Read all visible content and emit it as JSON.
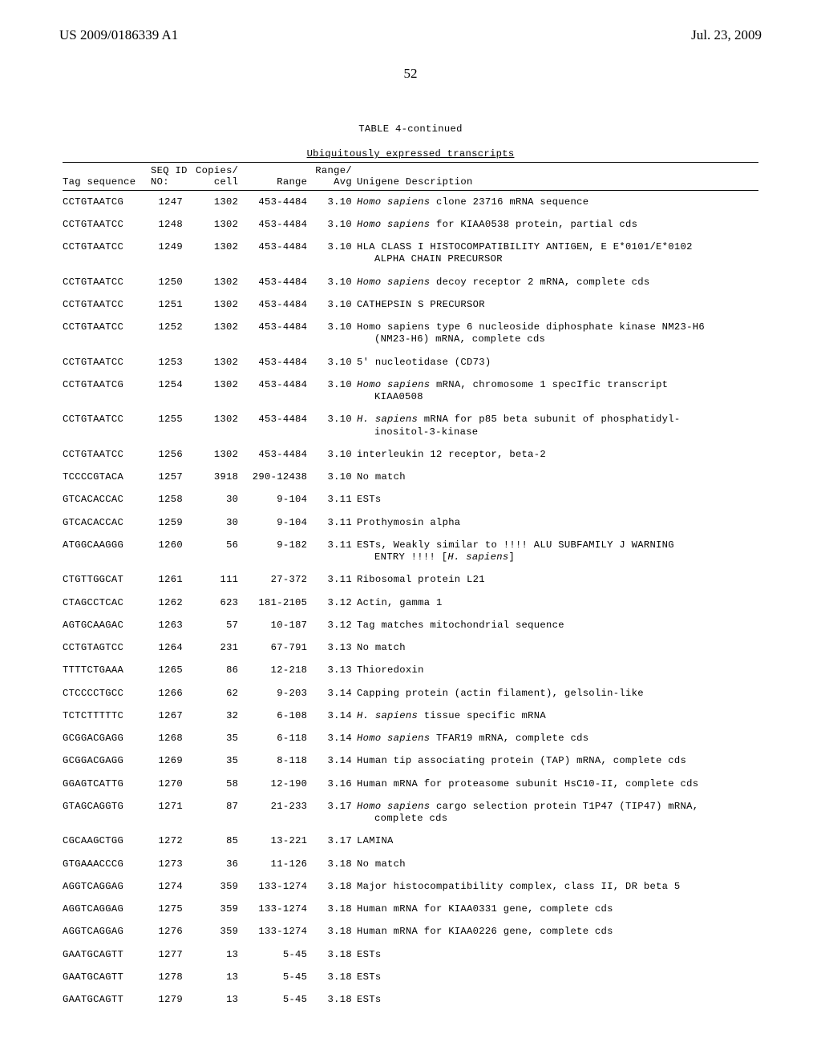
{
  "header": {
    "left": "US 2009/0186339 A1",
    "right": "Jul. 23, 2009"
  },
  "page_number": "52",
  "table": {
    "title": "TABLE 4-continued",
    "subtitle": "Ubiquitously expressed transcripts",
    "columns": {
      "seq": "Tag sequence",
      "no_top": "SEQ ID",
      "no_bot": "NO:",
      "copies_top": "Copies/",
      "copies_bot": "cell",
      "range": "Range",
      "avg_top": "Range/",
      "avg_bot": "Avg",
      "desc": "Unigene Description"
    },
    "rows": [
      {
        "seq": "CCTGTAATCG",
        "no": "1247",
        "copies": "1302",
        "range": "453-4484",
        "avg": "3.10",
        "desc": "<em class='ital'>Homo sapiens</em> clone 23716 mRNA sequence"
      },
      {
        "seq": "CCTGTAATCC",
        "no": "1248",
        "copies": "1302",
        "range": "453-4484",
        "avg": "3.10",
        "desc": "<em class='ital'>Homo sapiens</em> for KIAA0538 protein, partial cds"
      },
      {
        "seq": "CCTGTAATCC",
        "no": "1249",
        "copies": "1302",
        "range": "453-4484",
        "avg": "3.10",
        "desc": "HLA CLASS I HISTOCOMPATIBILITY ANTIGEN, E E*0101/E*0102<span class='desc-indent'>ALPHA CHAIN PRECURSOR</span>"
      },
      {
        "seq": "CCTGTAATCC",
        "no": "1250",
        "copies": "1302",
        "range": "453-4484",
        "avg": "3.10",
        "desc": "<em class='ital'>Homo sapiens</em> decoy receptor 2 mRNA, complete cds"
      },
      {
        "seq": "CCTGTAATCC",
        "no": "1251",
        "copies": "1302",
        "range": "453-4484",
        "avg": "3.10",
        "desc": "CATHEPSIN S PRECURSOR"
      },
      {
        "seq": "CCTGTAATCC",
        "no": "1252",
        "copies": "1302",
        "range": "453-4484",
        "avg": "3.10",
        "desc": "Homo sapiens type 6 nucleoside diphosphate kinase NM23-H6<span class='desc-indent'>(NM23-H6) mRNA, complete cds</span>"
      },
      {
        "seq": "CCTGTAATCC",
        "no": "1253",
        "copies": "1302",
        "range": "453-4484",
        "avg": "3.10",
        "desc": "5' nucleotidase (CD73)"
      },
      {
        "seq": "CCTGTAATCG",
        "no": "1254",
        "copies": "1302",
        "range": "453-4484",
        "avg": "3.10",
        "desc": "<em class='ital'>Homo sapiens</em> mRNA, chromosome 1 specIfic transcript<span class='desc-indent'>KIAA0508</span>"
      },
      {
        "seq": "CCTGTAATCC",
        "no": "1255",
        "copies": "1302",
        "range": "453-4484",
        "avg": "3.10",
        "desc": "<em class='ital'>H. sapiens</em> mRNA for p85 beta subunit of phosphatidyl-<span class='desc-indent'>inositol-3-kinase</span>"
      },
      {
        "seq": "CCTGTAATCC",
        "no": "1256",
        "copies": "1302",
        "range": "453-4484",
        "avg": "3.10",
        "desc": "interleukin 12 receptor, beta-2"
      },
      {
        "seq": "TCCCCGTACA",
        "no": "1257",
        "copies": "3918",
        "range": "290-12438",
        "avg": "3.10",
        "desc": "No match"
      },
      {
        "seq": "GTCACACCAC",
        "no": "1258",
        "copies": "30",
        "range": "9-104",
        "avg": "3.11",
        "desc": "ESTs"
      },
      {
        "seq": "GTCACACCAC",
        "no": "1259",
        "copies": "30",
        "range": "9-104",
        "avg": "3.11",
        "desc": "Prothymosin alpha"
      },
      {
        "seq": "ATGGCAAGGG",
        "no": "1260",
        "copies": "56",
        "range": "9-182",
        "avg": "3.11",
        "desc": "ESTs, Weakly similar to !!!! ALU SUBFAMILY J WARNING<span class='desc-indent'>ENTRY !!!! [<em class='ital'>H. sapiens</em>]</span>"
      },
      {
        "seq": "CTGTTGGCAT",
        "no": "1261",
        "copies": "111",
        "range": "27-372",
        "avg": "3.11",
        "desc": "Ribosomal protein L21"
      },
      {
        "seq": "CTAGCCTCAC",
        "no": "1262",
        "copies": "623",
        "range": "181-2105",
        "avg": "3.12",
        "desc": "Actin, gamma 1"
      },
      {
        "seq": "AGTGCAAGAC",
        "no": "1263",
        "copies": "57",
        "range": "10-187",
        "avg": "3.12",
        "desc": "Tag matches mitochondrial sequence"
      },
      {
        "seq": "CCTGTAGTCC",
        "no": "1264",
        "copies": "231",
        "range": "67-791",
        "avg": "3.13",
        "desc": "No match"
      },
      {
        "seq": "TTTTCTGAAA",
        "no": "1265",
        "copies": "86",
        "range": "12-218",
        "avg": "3.13",
        "desc": "Thioredoxin"
      },
      {
        "seq": "CTCCCCTGCC",
        "no": "1266",
        "copies": "62",
        "range": "9-203",
        "avg": "3.14",
        "desc": "Capping protein (actin filament), gelsolin-like"
      },
      {
        "seq": "TCTCTTTTTC",
        "no": "1267",
        "copies": "32",
        "range": "6-108",
        "avg": "3.14",
        "desc": "<em class='ital'>H. sapiens</em> tissue specific mRNA"
      },
      {
        "seq": "GCGGACGAGG",
        "no": "1268",
        "copies": "35",
        "range": "6-118",
        "avg": "3.14",
        "desc": "<em class='ital'>Homo sapiens</em> TFAR19 mRNA, complete cds"
      },
      {
        "seq": "GCGGACGAGG",
        "no": "1269",
        "copies": "35",
        "range": "8-118",
        "avg": "3.14",
        "desc": "Human tip associating protein (TAP) mRNA, complete cds"
      },
      {
        "seq": "GGAGTCATTG",
        "no": "1270",
        "copies": "58",
        "range": "12-190",
        "avg": "3.16",
        "desc": "Human mRNA for proteasome subunit HsC10-II, complete cds"
      },
      {
        "seq": "GTAGCAGGTG",
        "no": "1271",
        "copies": "87",
        "range": "21-233",
        "avg": "3.17",
        "desc": "<em class='ital'>Homo sapiens</em> cargo selection protein T1P47 (TIP47) mRNA,<span class='desc-indent'>complete cds</span>"
      },
      {
        "seq": "CGCAAGCTGG",
        "no": "1272",
        "copies": "85",
        "range": "13-221",
        "avg": "3.17",
        "desc": "LAMINA"
      },
      {
        "seq": "GTGAAACCCG",
        "no": "1273",
        "copies": "36",
        "range": "11-126",
        "avg": "3.18",
        "desc": "No match"
      },
      {
        "seq": "AGGTCAGGAG",
        "no": "1274",
        "copies": "359",
        "range": "133-1274",
        "avg": "3.18",
        "desc": "Major histocompatibility complex, class II, DR beta 5"
      },
      {
        "seq": "AGGTCAGGAG",
        "no": "1275",
        "copies": "359",
        "range": "133-1274",
        "avg": "3.18",
        "desc": "Human mRNA for KIAA0331 gene, complete cds"
      },
      {
        "seq": "AGGTCAGGAG",
        "no": "1276",
        "copies": "359",
        "range": "133-1274",
        "avg": "3.18",
        "desc": "Human mRNA for KIAA0226 gene, complete cds"
      },
      {
        "seq": "GAATGCAGTT",
        "no": "1277",
        "copies": "13",
        "range": "5-45",
        "avg": "3.18",
        "desc": "ESTs"
      },
      {
        "seq": "GAATGCAGTT",
        "no": "1278",
        "copies": "13",
        "range": "5-45",
        "avg": "3.18",
        "desc": "ESTs"
      },
      {
        "seq": "GAATGCAGTT",
        "no": "1279",
        "copies": "13",
        "range": "5-45",
        "avg": "3.18",
        "desc": "ESTs"
      }
    ]
  }
}
